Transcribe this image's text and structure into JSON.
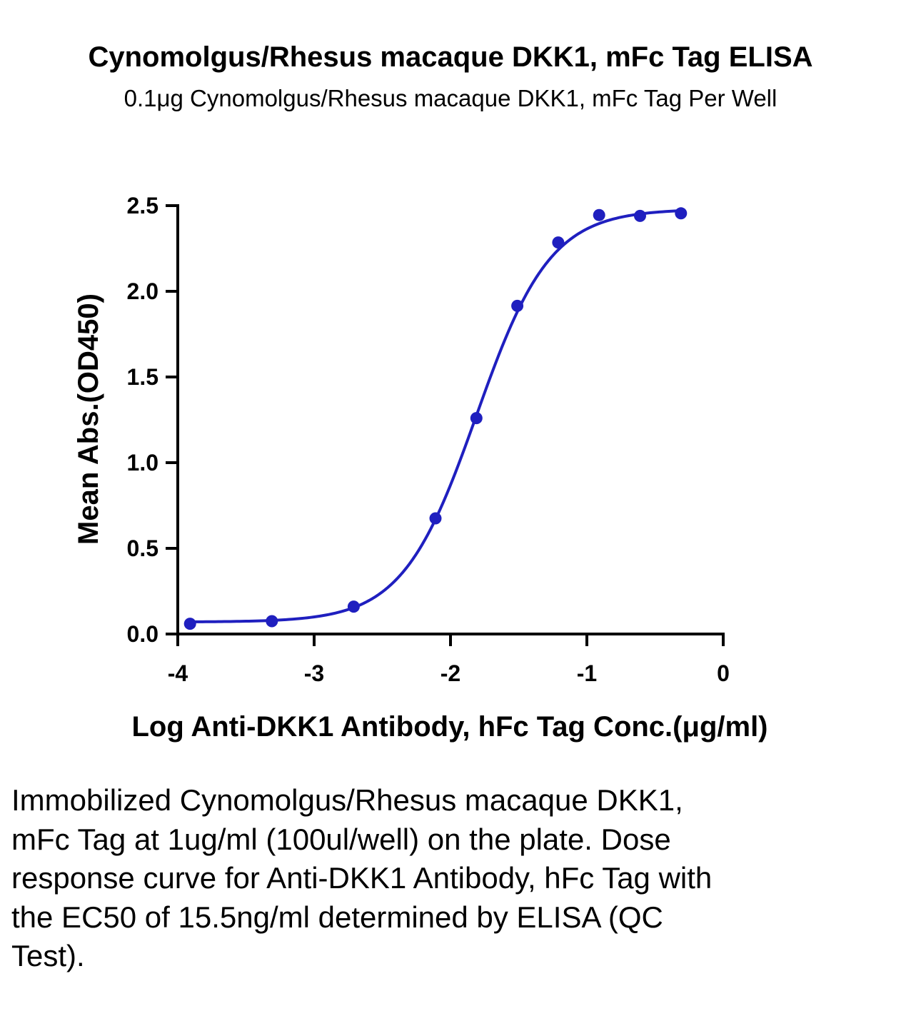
{
  "chart_data": {
    "type": "scatter",
    "title": "Cynomolgus/Rhesus macaque DKK1, mFc Tag ELISA",
    "subtitle": "0.1μg Cynomolgus/Rhesus macaque DKK1, mFc Tag Per Well",
    "xlabel": "Log Anti-DKK1 Antibody, hFc Tag Conc.(μg/ml)",
    "ylabel": "Mean Abs.(OD450)",
    "xlim": [
      -4,
      0
    ],
    "ylim": [
      0,
      2.5
    ],
    "xticks": [
      "-4",
      "-3",
      "-2",
      "-1",
      "0"
    ],
    "yticks": [
      "0.0",
      "0.5",
      "1.0",
      "1.5",
      "2.0",
      "2.5"
    ],
    "grid": false,
    "legend": "none",
    "series": [
      {
        "x": [
          -3.91,
          -3.31,
          -2.71,
          -2.11,
          -1.81,
          -1.51,
          -1.21,
          -0.91,
          -0.61,
          -0.31
        ],
        "y": [
          0.06,
          0.075,
          0.16,
          0.675,
          1.26,
          1.915,
          2.285,
          2.445,
          2.44,
          2.455
        ],
        "color": "#1F1FBF"
      }
    ],
    "fit_curve": {
      "model": "4PL",
      "bottom": 0.07,
      "top": 2.48,
      "log_ec50": -1.81,
      "hill": 1.6,
      "color": "#1F1FBF"
    }
  },
  "caption": "Immobilized Cynomolgus/Rhesus macaque DKK1, mFc Tag at 1ug/ml (100ul/well) on the plate. Dose response curve for Anti-DKK1 Antibody, hFc Tag with the EC50 of 15.5ng/ml determined by ELISA (QC Test)."
}
